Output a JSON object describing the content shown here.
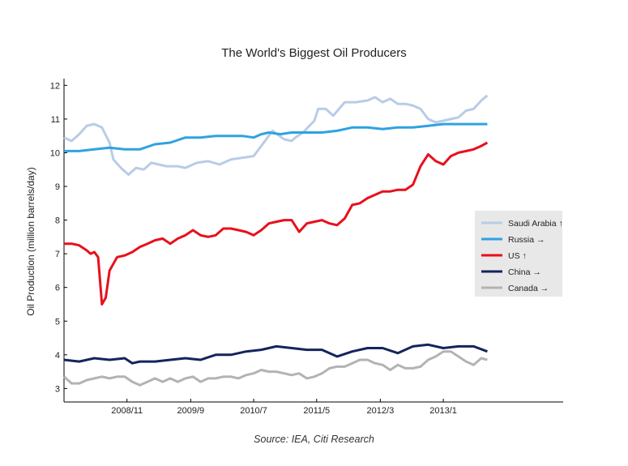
{
  "chart_data": {
    "type": "line",
    "title": "The World's Biggest Oil Producers",
    "ylabel": "Oil Production (million barrels/day)",
    "source": "Source: IEA, Citi Research",
    "ylim": [
      2.6,
      12.2
    ],
    "yticks": [
      3,
      4,
      5,
      6,
      7,
      8,
      9,
      10,
      11,
      12
    ],
    "xlim": [
      2008.0,
      2014.58
    ],
    "xticks": [
      {
        "label": "2008/11",
        "x": 2008.83
      },
      {
        "label": "2009/9",
        "x": 2009.67
      },
      {
        "label": "2010/7",
        "x": 2010.5
      },
      {
        "label": "2011/5",
        "x": 2011.33
      },
      {
        "label": "2012/3",
        "x": 2012.17
      },
      {
        "label": "2013/1",
        "x": 2013.0
      }
    ],
    "grid": false,
    "legend_position": "right",
    "series": [
      {
        "name": "Saudi Arabia",
        "arrow": "↑",
        "color": "#b8cce8",
        "x": [
          2008.0,
          2008.1,
          2008.2,
          2008.3,
          2008.4,
          2008.5,
          2008.6,
          2008.65,
          2008.75,
          2008.85,
          2008.95,
          2009.05,
          2009.15,
          2009.25,
          2009.35,
          2009.5,
          2009.6,
          2009.75,
          2009.9,
          2010.05,
          2010.2,
          2010.35,
          2010.5,
          2010.6,
          2010.75,
          2010.9,
          2011.0,
          2011.05,
          2011.15,
          2011.3,
          2011.35,
          2011.45,
          2011.55,
          2011.7,
          2011.85,
          2012.0,
          2012.1,
          2012.2,
          2012.3,
          2012.4,
          2012.5,
          2012.6,
          2012.7,
          2012.8,
          2012.9,
          2013.0,
          2013.1,
          2013.2,
          2013.3,
          2013.4,
          2013.5,
          2013.58
        ],
        "y": [
          10.45,
          10.35,
          10.55,
          10.8,
          10.85,
          10.75,
          10.3,
          9.8,
          9.55,
          9.35,
          9.55,
          9.5,
          9.7,
          9.65,
          9.6,
          9.6,
          9.55,
          9.7,
          9.75,
          9.65,
          9.8,
          9.85,
          9.9,
          10.2,
          10.65,
          10.4,
          10.35,
          10.45,
          10.6,
          10.95,
          11.3,
          11.3,
          11.1,
          11.5,
          11.5,
          11.55,
          11.65,
          11.5,
          11.6,
          11.45,
          11.45,
          11.4,
          11.3,
          11.0,
          10.9,
          10.95,
          11.0,
          11.05,
          11.25,
          11.3,
          11.55,
          11.7
        ]
      },
      {
        "name": "Russia",
        "arrow": "→",
        "color": "#2fa2e0",
        "x": [
          2008.0,
          2008.2,
          2008.4,
          2008.6,
          2008.8,
          2009.0,
          2009.2,
          2009.4,
          2009.6,
          2009.8,
          2010.0,
          2010.2,
          2010.35,
          2010.5,
          2010.6,
          2010.7,
          2010.85,
          2011.0,
          2011.2,
          2011.4,
          2011.6,
          2011.8,
          2012.0,
          2012.2,
          2012.4,
          2012.6,
          2012.8,
          2013.0,
          2013.2,
          2013.4,
          2013.58
        ],
        "y": [
          10.05,
          10.05,
          10.1,
          10.15,
          10.1,
          10.1,
          10.25,
          10.3,
          10.45,
          10.45,
          10.5,
          10.5,
          10.5,
          10.45,
          10.55,
          10.6,
          10.55,
          10.6,
          10.6,
          10.6,
          10.65,
          10.75,
          10.75,
          10.7,
          10.75,
          10.75,
          10.8,
          10.85,
          10.85,
          10.85,
          10.85
        ]
      },
      {
        "name": "US",
        "arrow": "↑",
        "color": "#e8101c",
        "x": [
          2008.0,
          2008.1,
          2008.2,
          2008.3,
          2008.35,
          2008.4,
          2008.45,
          2008.5,
          2008.55,
          2008.6,
          2008.7,
          2008.8,
          2008.9,
          2009.0,
          2009.1,
          2009.2,
          2009.3,
          2009.4,
          2009.5,
          2009.6,
          2009.7,
          2009.8,
          2009.9,
          2010.0,
          2010.1,
          2010.2,
          2010.3,
          2010.4,
          2010.5,
          2010.6,
          2010.7,
          2010.8,
          2010.9,
          2011.0,
          2011.1,
          2011.2,
          2011.3,
          2011.4,
          2011.5,
          2011.6,
          2011.7,
          2011.8,
          2011.9,
          2012.0,
          2012.1,
          2012.2,
          2012.3,
          2012.4,
          2012.5,
          2012.6,
          2012.7,
          2012.8,
          2012.9,
          2013.0,
          2013.1,
          2013.2,
          2013.3,
          2013.4,
          2013.5,
          2013.58
        ],
        "y": [
          7.3,
          7.3,
          7.25,
          7.1,
          7.0,
          7.05,
          6.9,
          5.5,
          5.7,
          6.5,
          6.9,
          6.95,
          7.05,
          7.2,
          7.3,
          7.4,
          7.45,
          7.3,
          7.45,
          7.55,
          7.7,
          7.55,
          7.5,
          7.55,
          7.75,
          7.75,
          7.7,
          7.65,
          7.55,
          7.7,
          7.9,
          7.95,
          8.0,
          8.0,
          7.65,
          7.9,
          7.95,
          8.0,
          7.9,
          7.85,
          8.05,
          8.45,
          8.5,
          8.65,
          8.75,
          8.85,
          8.85,
          8.9,
          8.9,
          9.05,
          9.6,
          9.95,
          9.75,
          9.65,
          9.9,
          10.0,
          10.05,
          10.1,
          10.2,
          10.3
        ]
      },
      {
        "name": "China",
        "arrow": "→",
        "color": "#14245c",
        "x": [
          2008.0,
          2008.2,
          2008.4,
          2008.6,
          2008.8,
          2008.9,
          2009.0,
          2009.2,
          2009.4,
          2009.6,
          2009.8,
          2010.0,
          2010.2,
          2010.4,
          2010.6,
          2010.8,
          2011.0,
          2011.2,
          2011.4,
          2011.6,
          2011.8,
          2012.0,
          2012.2,
          2012.4,
          2012.6,
          2012.8,
          2013.0,
          2013.2,
          2013.4,
          2013.58
        ],
        "y": [
          3.85,
          3.8,
          3.9,
          3.85,
          3.9,
          3.75,
          3.8,
          3.8,
          3.85,
          3.9,
          3.85,
          4.0,
          4.0,
          4.1,
          4.15,
          4.25,
          4.2,
          4.15,
          4.15,
          3.95,
          4.1,
          4.2,
          4.2,
          4.05,
          4.25,
          4.3,
          4.2,
          4.25,
          4.25,
          4.1
        ]
      },
      {
        "name": "Canada",
        "arrow": "→",
        "color": "#b3b3b3",
        "x": [
          2008.0,
          2008.1,
          2008.2,
          2008.3,
          2008.4,
          2008.5,
          2008.6,
          2008.7,
          2008.8,
          2008.9,
          2009.0,
          2009.1,
          2009.2,
          2009.3,
          2009.4,
          2009.5,
          2009.6,
          2009.7,
          2009.8,
          2009.9,
          2010.0,
          2010.1,
          2010.2,
          2010.3,
          2010.4,
          2010.5,
          2010.6,
          2010.7,
          2010.8,
          2010.9,
          2011.0,
          2011.1,
          2011.2,
          2011.3,
          2011.4,
          2011.5,
          2011.6,
          2011.7,
          2011.8,
          2011.9,
          2012.0,
          2012.1,
          2012.2,
          2012.3,
          2012.4,
          2012.5,
          2012.6,
          2012.7,
          2012.8,
          2012.9,
          2013.0,
          2013.1,
          2013.2,
          2013.3,
          2013.4,
          2013.5,
          2013.58
        ],
        "y": [
          3.35,
          3.15,
          3.15,
          3.25,
          3.3,
          3.35,
          3.3,
          3.35,
          3.35,
          3.2,
          3.1,
          3.2,
          3.3,
          3.2,
          3.3,
          3.2,
          3.3,
          3.35,
          3.2,
          3.3,
          3.3,
          3.35,
          3.35,
          3.3,
          3.4,
          3.45,
          3.55,
          3.5,
          3.5,
          3.45,
          3.4,
          3.45,
          3.3,
          3.35,
          3.45,
          3.6,
          3.65,
          3.65,
          3.75,
          3.85,
          3.85,
          3.75,
          3.7,
          3.55,
          3.7,
          3.6,
          3.6,
          3.65,
          3.85,
          3.95,
          4.1,
          4.1,
          3.95,
          3.8,
          3.7,
          3.9,
          3.85
        ]
      }
    ]
  }
}
